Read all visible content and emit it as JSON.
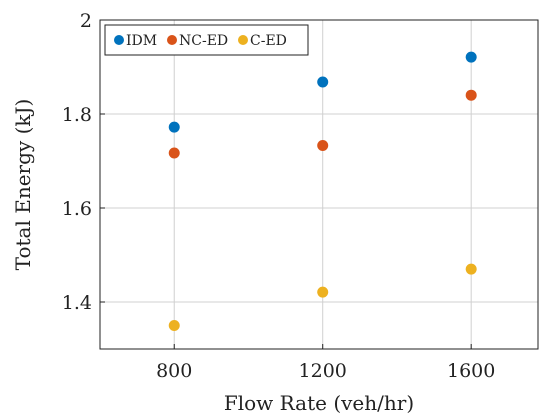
{
  "chart_data": {
    "type": "scatter",
    "xlabel": "Flow Rate (veh/hr)",
    "ylabel": "Total Energy (kJ)",
    "x": [
      800,
      1200,
      1600
    ],
    "xlim": [
      600,
      1780
    ],
    "ylim": [
      1.3,
      2.0
    ],
    "xticks": [
      "800",
      "1200",
      "1600"
    ],
    "yticks": [
      "1.4",
      "1.6",
      "1.8",
      "2"
    ],
    "grid": true,
    "legend_position": "top-left",
    "series": [
      {
        "name": "IDM",
        "color": "#0072BD",
        "values": [
          1.772,
          1.868,
          1.921
        ]
      },
      {
        "name": "NC-ED",
        "color": "#D95319",
        "values": [
          1.717,
          1.733,
          1.84
        ]
      },
      {
        "name": "C-ED",
        "color": "#EDB120",
        "values": [
          1.35,
          1.421,
          1.47
        ]
      }
    ]
  }
}
